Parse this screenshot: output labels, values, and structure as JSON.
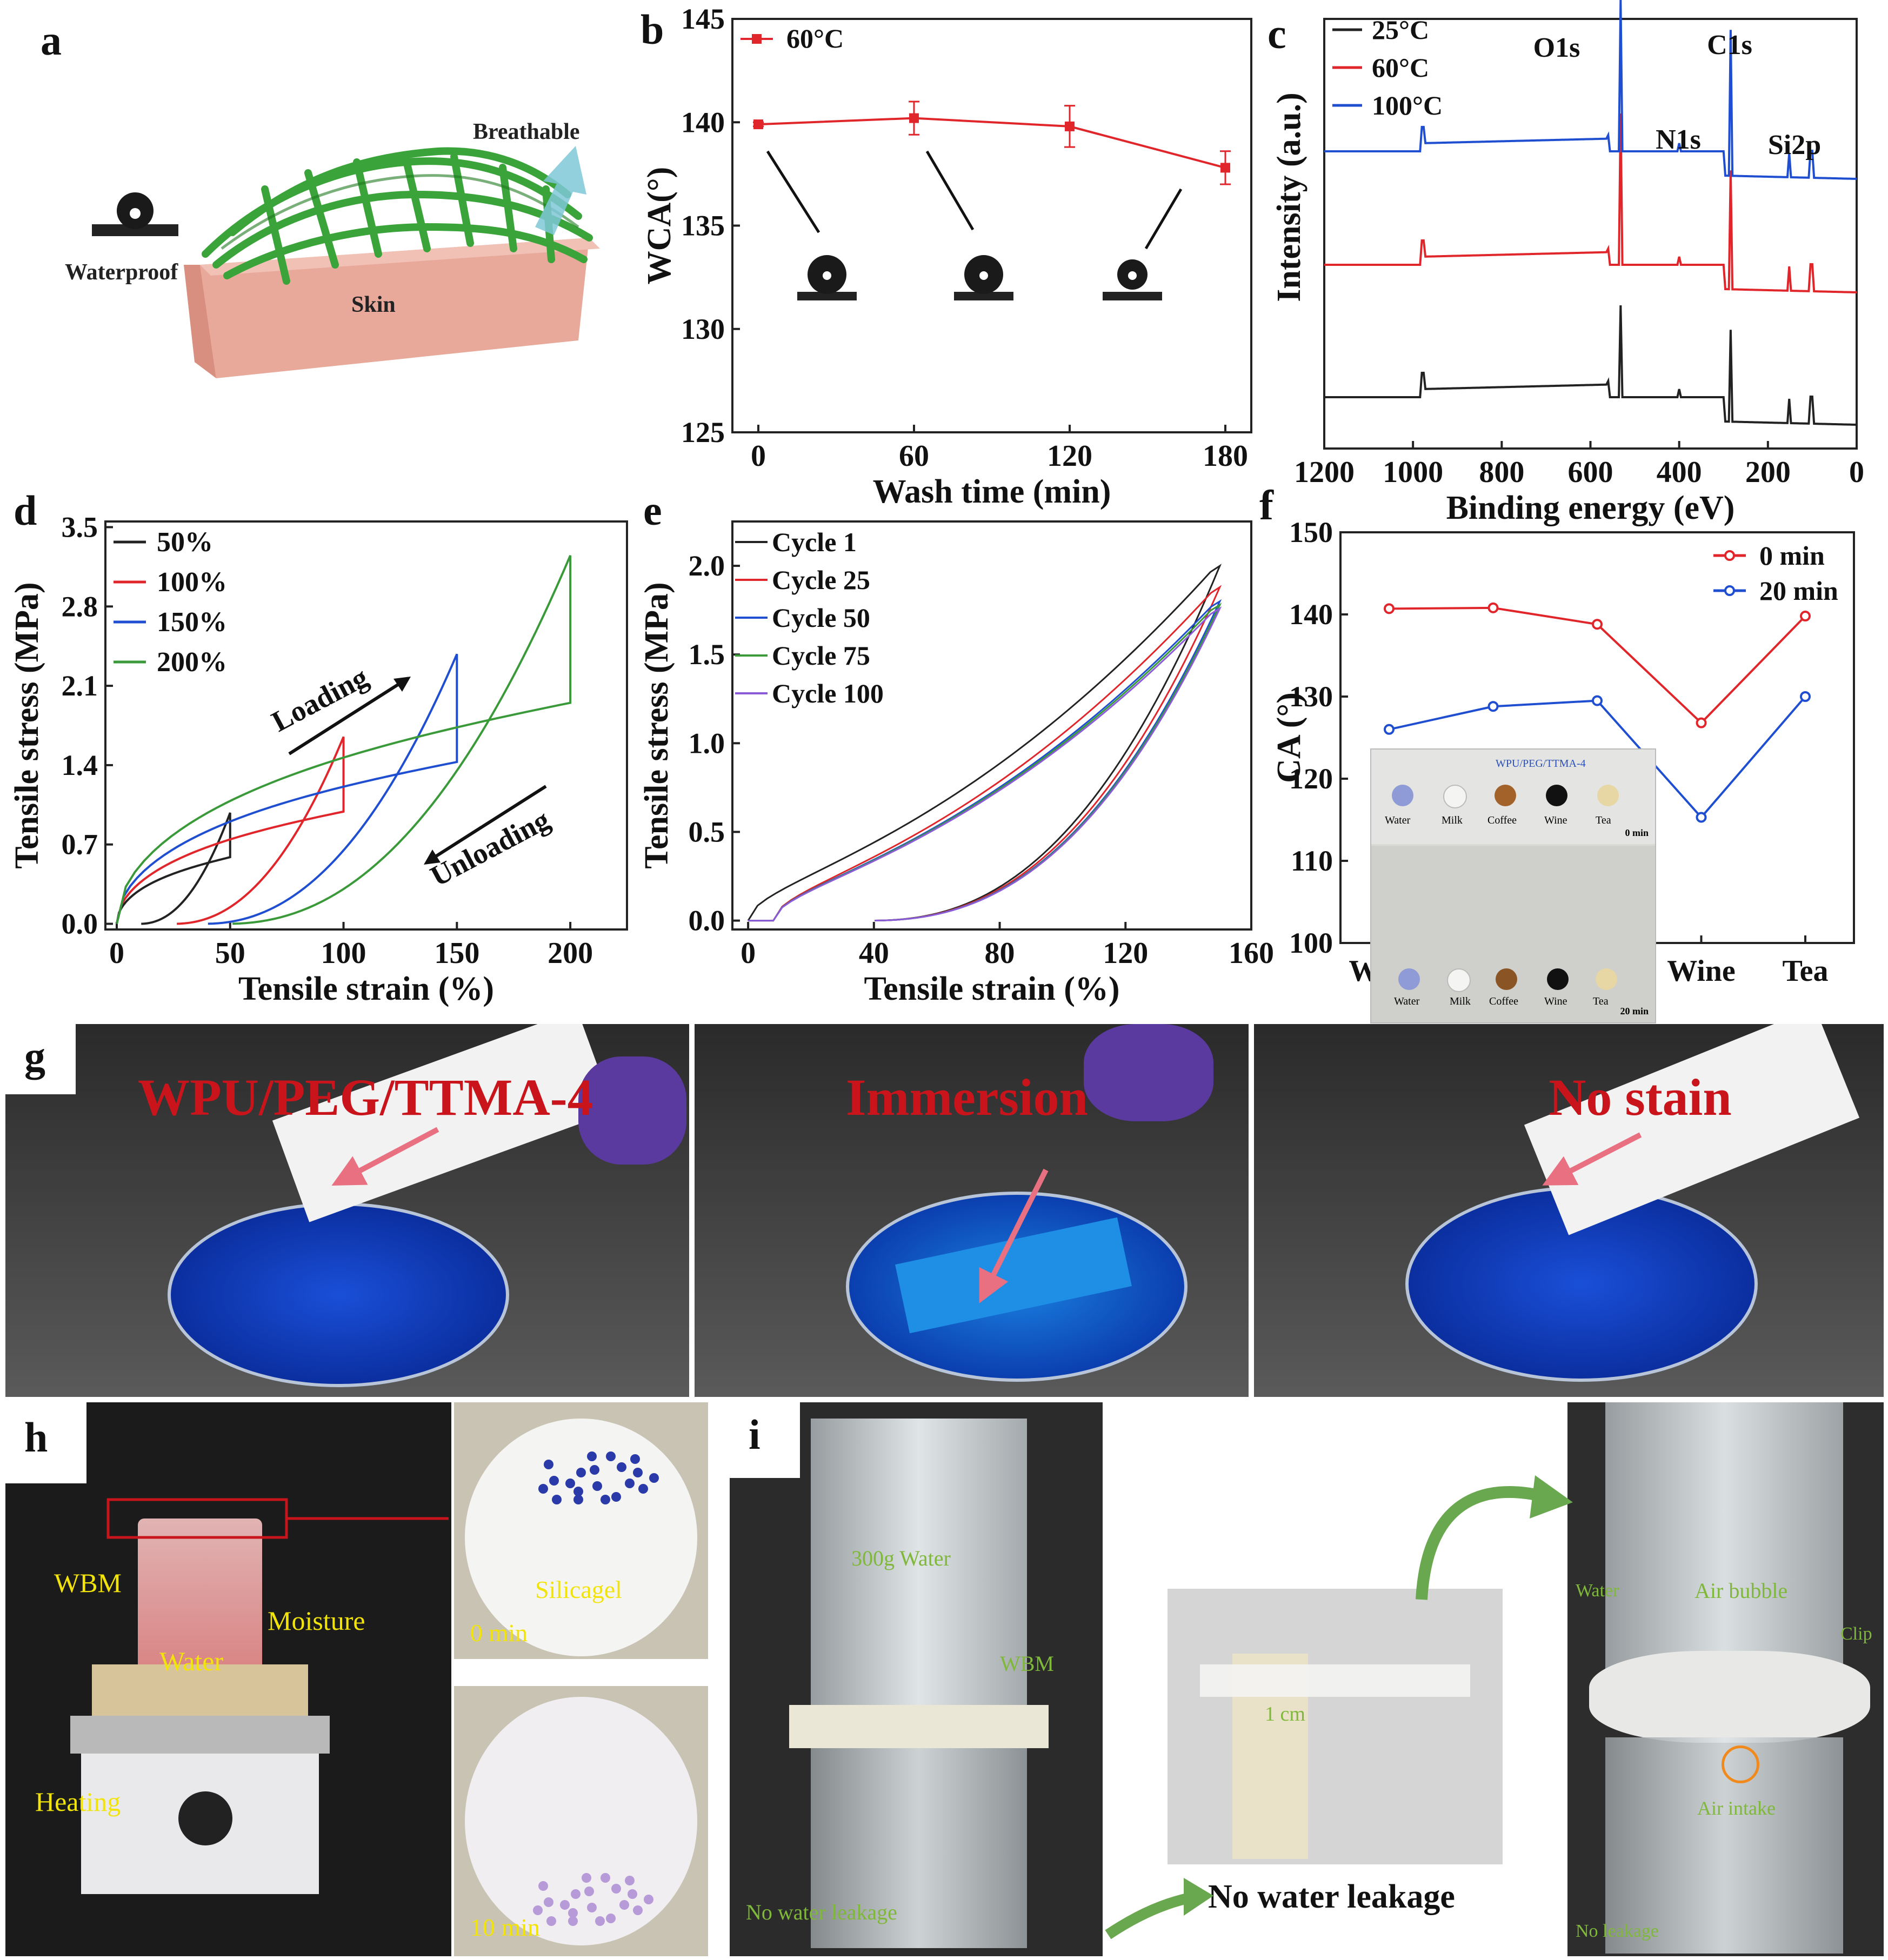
{
  "panel_letters": {
    "a": "a",
    "b": "b",
    "c": "c",
    "d": "d",
    "e": "e",
    "f": "f",
    "g": "g",
    "h": "h",
    "i": "i"
  },
  "panel_a": {
    "breathable": "Breathable",
    "waterproof": "Waterproof",
    "skin": "Skin"
  },
  "panel_g": {
    "label1": "WPU/PEG/TTMA-4",
    "label2": "Immersion",
    "label3": "No stain"
  },
  "panel_h": {
    "wbm": "WBM",
    "moisture": "Moisture",
    "water": "Water",
    "heating": "Heating",
    "silicagel": "Silicagel",
    "t0": "0 min",
    "t10": "10 min"
  },
  "panel_i": {
    "water300": "300g Water",
    "wbm": "WBM",
    "no_leak": "No water leakage",
    "cm": "1 cm",
    "no_leak_caption": "No water leakage",
    "water": "Water",
    "air_bubble": "Air bubble",
    "clip": "Clip",
    "air_intake": "Air intake",
    "no_leakage": "No leakage"
  },
  "panel_f_inset": {
    "title": "WPU/PEG/TTMA-4",
    "labels": [
      "Water",
      "Milk",
      "Coffee",
      "Wine",
      "Tea"
    ],
    "t0": "0 min",
    "t20": "20 min"
  },
  "colors": {
    "red": "#e0262b",
    "blue": "#1f4fd0",
    "black": "#222222",
    "green": "#3a9a3a",
    "purple": "#8a5ad8",
    "label_red": "#c8141a",
    "label_yellow": "#f2e40a",
    "label_green": "#7fb83a"
  },
  "chart_data": [
    {
      "id": "b",
      "type": "line",
      "xlabel": "Wash time (min)",
      "ylabel": "WCA(°)",
      "xticks": [
        "0",
        "60",
        "120",
        "180"
      ],
      "yticks": [
        "125",
        "130",
        "135",
        "140",
        "145"
      ],
      "xlim": [
        -10,
        190
      ],
      "ylim": [
        125,
        145
      ],
      "series": [
        {
          "name": "60°C",
          "x": [
            0,
            60,
            120,
            180
          ],
          "y": [
            139.9,
            140.2,
            139.8,
            137.8
          ],
          "err": [
            0.1,
            0.8,
            1.0,
            0.8
          ]
        }
      ],
      "legend": "top-left"
    },
    {
      "id": "c",
      "type": "line",
      "xlabel": "Binding energy (eV)",
      "ylabel": "Intensity (a.u.)",
      "xticks": [
        "1200",
        "1000",
        "800",
        "600",
        "400",
        "200",
        "0"
      ],
      "xlim": [
        1200,
        0
      ],
      "peak_labels": [
        "O1s",
        "C1s",
        "N1s",
        "Si2p"
      ],
      "series": [
        {
          "name": "25°C"
        },
        {
          "name": "60°C"
        },
        {
          "name": "100°C"
        }
      ],
      "legend": "top-left"
    },
    {
      "id": "d",
      "type": "line",
      "xlabel": "Tensile strain (%)",
      "ylabel": "Tensile stress (MPa)",
      "xticks": [
        "0",
        "50",
        "100",
        "150",
        "200"
      ],
      "yticks": [
        "0.0",
        "0.7",
        "1.4",
        "2.1",
        "2.8",
        "3.5"
      ],
      "xlim": [
        -5,
        225
      ],
      "ylim": [
        0,
        3.5
      ],
      "annotations": [
        "Loading",
        "Unloading"
      ],
      "series": [
        {
          "name": "50%",
          "peak": [
            50,
            0.98
          ],
          "residual": 10
        },
        {
          "name": "100%",
          "peak": [
            100,
            1.65
          ],
          "residual": 25
        },
        {
          "name": "150%",
          "peak": [
            150,
            2.38
          ],
          "residual": 38
        },
        {
          "name": "200%",
          "peak": [
            200,
            3.25
          ],
          "residual": 48
        }
      ],
      "legend": "top-left"
    },
    {
      "id": "e",
      "type": "line",
      "xlabel": "Tensile strain (%)",
      "ylabel": "Tensile stress (MPa)",
      "xticks": [
        "0",
        "40",
        "80",
        "120",
        "160"
      ],
      "yticks": [
        "0.0",
        "0.5",
        "1.0",
        "1.5",
        "2.0"
      ],
      "xlim": [
        -5,
        160
      ],
      "ylim": [
        -0.05,
        2.25
      ],
      "series": [
        {
          "name": "Cycle 1",
          "peak": [
            150,
            2.0
          ]
        },
        {
          "name": "Cycle 25",
          "peak": [
            150,
            1.88
          ]
        },
        {
          "name": "Cycle 50",
          "peak": [
            150,
            1.8
          ]
        },
        {
          "name": "Cycle 75",
          "peak": [
            150,
            1.78
          ]
        },
        {
          "name": "Cycle 100",
          "peak": [
            150,
            1.76
          ]
        }
      ],
      "legend": "top-left"
    },
    {
      "id": "f",
      "type": "line",
      "ylabel": "CA (°)",
      "categories": [
        "Water",
        "Milk",
        "Coffee",
        "Wine",
        "Tea"
      ],
      "yticks": [
        "100",
        "110",
        "120",
        "130",
        "140",
        "150"
      ],
      "ylim": [
        100,
        150
      ],
      "series": [
        {
          "name": "0  min",
          "values": [
            140.7,
            140.8,
            138.8,
            126.8,
            139.8
          ]
        },
        {
          "name": "20 min",
          "values": [
            126.0,
            128.8,
            129.5,
            115.3,
            130.0
          ]
        }
      ],
      "legend": "top-right"
    }
  ]
}
